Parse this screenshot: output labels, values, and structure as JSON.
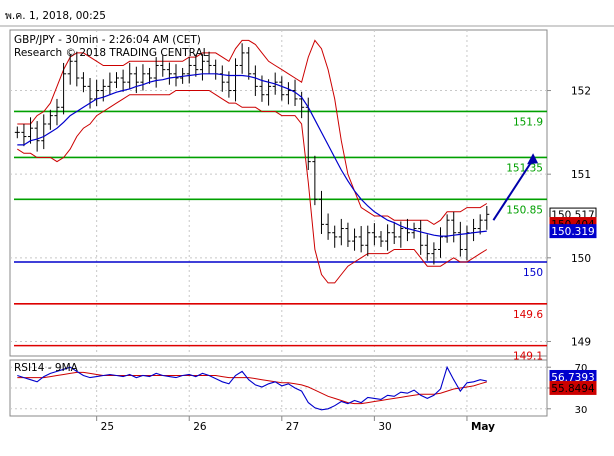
{
  "header": {
    "datetime": "พ.ค. 1, 2018, 00:25"
  },
  "chart_data": [
    {
      "type": "candlestick",
      "title": "GBP/JPY - 30min - 2:26:04 AM (CET)",
      "subtitle": "Research © 2018 TRADING CENTRAL",
      "ylim": [
        148.85,
        152.7
      ],
      "y_ticks": [
        149,
        150,
        151,
        152
      ],
      "x_tick_labels": [
        "25",
        "26",
        "27",
        "30",
        "May"
      ],
      "x_tick_positions": [
        12,
        26,
        40,
        54,
        68
      ],
      "n_bars": 72,
      "close": [
        151.5,
        151.45,
        151.55,
        151.4,
        151.6,
        151.7,
        151.8,
        152.2,
        152.35,
        152.15,
        152.05,
        151.9,
        152.0,
        152.05,
        152.1,
        152.15,
        152.1,
        152.2,
        152.1,
        152.2,
        152.15,
        152.3,
        152.25,
        152.2,
        152.15,
        152.2,
        152.3,
        152.25,
        152.35,
        152.3,
        152.2,
        152.1,
        152.0,
        152.3,
        152.45,
        152.2,
        152.05,
        151.95,
        152.05,
        152.1,
        151.95,
        152.0,
        151.9,
        151.8,
        151.15,
        150.7,
        150.4,
        150.3,
        150.25,
        150.35,
        150.2,
        150.25,
        150.15,
        150.3,
        150.25,
        150.2,
        150.3,
        150.25,
        150.35,
        150.3,
        150.35,
        150.15,
        150.05,
        150.1,
        150.25,
        150.45,
        150.3,
        150.1,
        150.3,
        150.35,
        150.45,
        150.52
      ],
      "bollinger": {
        "upper": [
          151.6,
          151.6,
          151.6,
          151.7,
          151.75,
          151.85,
          152.05,
          152.25,
          152.4,
          152.45,
          152.45,
          152.4,
          152.35,
          152.3,
          152.3,
          152.3,
          152.3,
          152.35,
          152.35,
          152.35,
          152.35,
          152.35,
          152.35,
          152.35,
          152.35,
          152.35,
          152.4,
          152.4,
          152.45,
          152.45,
          152.45,
          152.4,
          152.35,
          152.5,
          152.6,
          152.6,
          152.55,
          152.45,
          152.35,
          152.3,
          152.25,
          152.2,
          152.15,
          152.1,
          152.4,
          152.6,
          152.5,
          152.25,
          151.9,
          151.4,
          151.0,
          150.8,
          150.6,
          150.55,
          150.5,
          150.5,
          150.5,
          150.45,
          150.45,
          150.45,
          150.45,
          150.45,
          150.45,
          150.4,
          150.45,
          150.55,
          150.55,
          150.55,
          150.6,
          150.6,
          150.6,
          150.65
        ],
        "lower": [
          151.3,
          151.25,
          151.25,
          151.2,
          151.2,
          151.2,
          151.15,
          151.2,
          151.3,
          151.45,
          151.55,
          151.6,
          151.7,
          151.75,
          151.8,
          151.85,
          151.9,
          151.95,
          151.95,
          151.95,
          151.95,
          151.95,
          151.95,
          151.95,
          152.0,
          152.0,
          152.0,
          152.0,
          152.0,
          152.0,
          151.95,
          151.9,
          151.85,
          151.85,
          151.8,
          151.8,
          151.8,
          151.75,
          151.75,
          151.75,
          151.7,
          151.7,
          151.7,
          151.6,
          150.9,
          150.1,
          149.8,
          149.7,
          149.7,
          149.8,
          149.9,
          149.95,
          150.0,
          150.05,
          150.05,
          150.05,
          150.05,
          150.1,
          150.1,
          150.1,
          150.1,
          150.0,
          149.9,
          149.9,
          149.9,
          149.95,
          150.0,
          149.95,
          149.95,
          150.0,
          150.05,
          150.1
        ]
      },
      "moving_average": [
        151.35,
        151.35,
        151.4,
        151.42,
        151.45,
        151.5,
        151.55,
        151.62,
        151.7,
        151.75,
        151.8,
        151.85,
        151.9,
        151.92,
        151.95,
        151.98,
        152.0,
        152.02,
        152.05,
        152.07,
        152.1,
        152.12,
        152.13,
        152.15,
        152.16,
        152.17,
        152.18,
        152.19,
        152.2,
        152.2,
        152.2,
        152.19,
        152.18,
        152.18,
        152.18,
        152.17,
        152.15,
        152.12,
        152.1,
        152.08,
        152.05,
        152.02,
        151.98,
        151.92,
        151.8,
        151.65,
        151.5,
        151.35,
        151.2,
        151.05,
        150.92,
        150.8,
        150.7,
        150.62,
        150.55,
        150.5,
        150.45,
        150.42,
        150.38,
        150.35,
        150.33,
        150.31,
        150.29,
        150.27,
        150.26,
        150.26,
        150.27,
        150.28,
        150.29,
        150.3,
        150.31,
        150.32
      ],
      "horizontal_lines": [
        {
          "value": 151.75,
          "label": "151.9",
          "color": "#00a000"
        },
        {
          "value": 151.2,
          "label": "151.35",
          "color": "#00a000"
        },
        {
          "value": 150.7,
          "label": "150.85",
          "color": "#00a000"
        },
        {
          "value": 149.95,
          "label": "150",
          "color": "#0000cc"
        },
        {
          "value": 149.45,
          "label": "149.6",
          "color": "#dd0000"
        },
        {
          "value": 148.95,
          "label": "149.1",
          "color": "#dd0000"
        }
      ],
      "price_tags": [
        {
          "value": 150.517,
          "label": "150.517",
          "bg": "#ffffff",
          "fg": "#000000"
        },
        {
          "value": 150.404,
          "label": "150.404",
          "bg": "#cc0000",
          "fg": "#000000"
        },
        {
          "value": 150.319,
          "label": "150.319",
          "bg": "#0000cc",
          "fg": "#ffffff"
        }
      ],
      "arrow": {
        "color": "#0000aa",
        "from_bar": 72,
        "from_value": 150.45,
        "to_bar": 78,
        "to_value": 151.25
      },
      "colors": {
        "price": "#000000",
        "bollinger": "#cc0000",
        "moving_average": "#0000cc",
        "grid": "#c8c8c8"
      }
    },
    {
      "type": "line",
      "title": "RSI14 - 9MA",
      "ylim": [
        25,
        75
      ],
      "y_ticks": [
        30,
        50,
        70
      ],
      "rsi": [
        62,
        60,
        58,
        56,
        61,
        64,
        66,
        68,
        70,
        66,
        62,
        60,
        61,
        62,
        63,
        62,
        61,
        63,
        60,
        62,
        61,
        64,
        62,
        61,
        60,
        62,
        63,
        61,
        64,
        62,
        59,
        56,
        54,
        62,
        66,
        58,
        53,
        51,
        54,
        56,
        52,
        54,
        50,
        47,
        36,
        31,
        29,
        30,
        33,
        37,
        35,
        38,
        36,
        41,
        40,
        39,
        43,
        42,
        46,
        45,
        48,
        43,
        40,
        43,
        49,
        70,
        58,
        47,
        55,
        56,
        58,
        56.74
      ],
      "ma": [
        60,
        60,
        60,
        60,
        60,
        61,
        62,
        63,
        64,
        65,
        65,
        64,
        63,
        62,
        62,
        62,
        62,
        62,
        62,
        62,
        62,
        62,
        62,
        62,
        62,
        62,
        62,
        62,
        62,
        62,
        62,
        61,
        60,
        60,
        60,
        60,
        59,
        58,
        57,
        56,
        55,
        55,
        54,
        53,
        51,
        48,
        45,
        42,
        40,
        38,
        36,
        35,
        35,
        36,
        37,
        38,
        39,
        40,
        41,
        42,
        43,
        44,
        44,
        44,
        45,
        47,
        49,
        50,
        51,
        52,
        54,
        55.85
      ],
      "price_tags": [
        {
          "value": 56.7393,
          "label": "56.7393",
          "bg": "#0000cc",
          "fg": "#ffffff"
        },
        {
          "value": 55.8494,
          "label": "55.8494",
          "bg": "#cc0000",
          "fg": "#000000"
        }
      ],
      "colors": {
        "rsi": "#0000cc",
        "ma": "#cc0000"
      }
    }
  ]
}
